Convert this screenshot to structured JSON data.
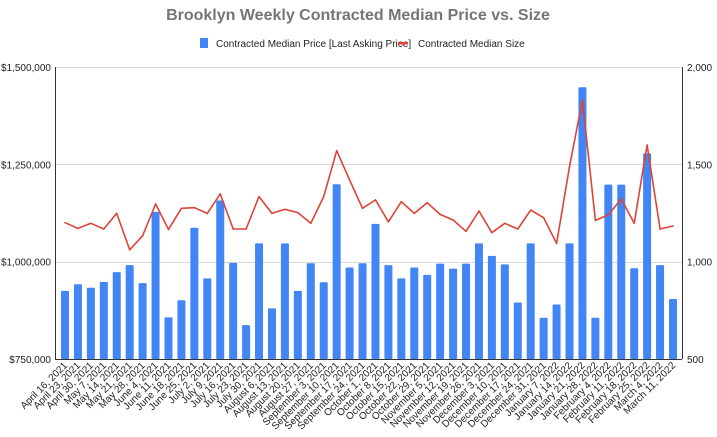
{
  "chart_data": {
    "type": "bar",
    "title": "Brooklyn Weekly Contracted Median Price vs. Size",
    "xlabel": "",
    "ylabel": "",
    "legend_position": "top",
    "grid": true,
    "categories": [
      "April 16, 2021",
      "April 23, 2021",
      "April 30, 2021",
      "May 7, 2021",
      "May 14, 2021",
      "May 21, 2021",
      "May 28, 2021",
      "June 4, 2021",
      "June 11, 2021",
      "June 18, 2021",
      "June 25, 2021",
      "July 2, 2021",
      "July 9, 2021",
      "July 16, 2021",
      "July 23, 2021",
      "July 30, 2021",
      "August 6, 2021",
      "August 13, 2021",
      "August 20, 2021",
      "August 27, 2021",
      "September 3, 2021",
      "September 10, 2021",
      "September 17, 2021",
      "September 24, 2021",
      "October 1, 2021",
      "October 8, 2021",
      "October 15, 2021",
      "October 22, 2021",
      "October 29, 2021",
      "November 5, 2021",
      "November 12, 2021",
      "November 19, 2021",
      "November 26, 2021",
      "December 3, 2021",
      "December 10, 2021",
      "December 17, 2021",
      "December 24, 2021",
      "December 31, 2021",
      "January 7, 2022",
      "January 14, 2022",
      "January 21, 2022",
      "January 28, 2022",
      "February 4, 2022",
      "February 11, 2022",
      "February 18, 2022",
      "February 25, 2022",
      "March 4, 2022",
      "March 11, 2022"
    ],
    "series": [
      {
        "name": "Contracted Median Price [Last Asking Price]",
        "type": "bar",
        "axis": "left",
        "color": "#4285f4",
        "values": [
          925000,
          942000,
          933000,
          948000,
          973000,
          991000,
          945000,
          1128000,
          857000,
          901000,
          1087000,
          957000,
          1157000,
          997000,
          837000,
          1047000,
          880000,
          1047000,
          925000,
          996000,
          947000,
          1199000,
          985000,
          996000,
          1097000,
          991000,
          957000,
          985000,
          966000,
          995000,
          982000,
          995000,
          1047000,
          1015000,
          993000,
          895000,
          1047000,
          856000,
          890000,
          1047000,
          1448000,
          856000,
          1198000,
          1198000,
          983000,
          1278000,
          991000,
          904000
        ]
      },
      {
        "name": "Contracted Median Size",
        "type": "line",
        "axis": "right",
        "color": "#db4437",
        "values": [
          1200,
          1171,
          1197,
          1168,
          1248,
          1061,
          1133,
          1296,
          1166,
          1274,
          1277,
          1248,
          1348,
          1168,
          1168,
          1334,
          1248,
          1269,
          1252,
          1197,
          1334,
          1570,
          1420,
          1274,
          1317,
          1205,
          1308,
          1248,
          1303,
          1243,
          1214,
          1156,
          1260,
          1149,
          1197,
          1168,
          1265,
          1226,
          1094,
          1488,
          1830,
          1212,
          1240,
          1322,
          1197,
          1599,
          1168,
          1183
        ]
      }
    ],
    "y_left": {
      "min": 750000,
      "max": 1500000,
      "ticks": [
        750000,
        1000000,
        1250000,
        1500000
      ],
      "tick_labels": [
        "$750,000",
        "$1,000,000",
        "$1,250,000",
        "$1,500,000"
      ]
    },
    "y_right": {
      "min": 500,
      "max": 2000,
      "ticks": [
        500,
        1000,
        1500,
        2000
      ],
      "tick_labels": [
        "500",
        "1,000",
        "1,500",
        "2,000"
      ]
    }
  }
}
